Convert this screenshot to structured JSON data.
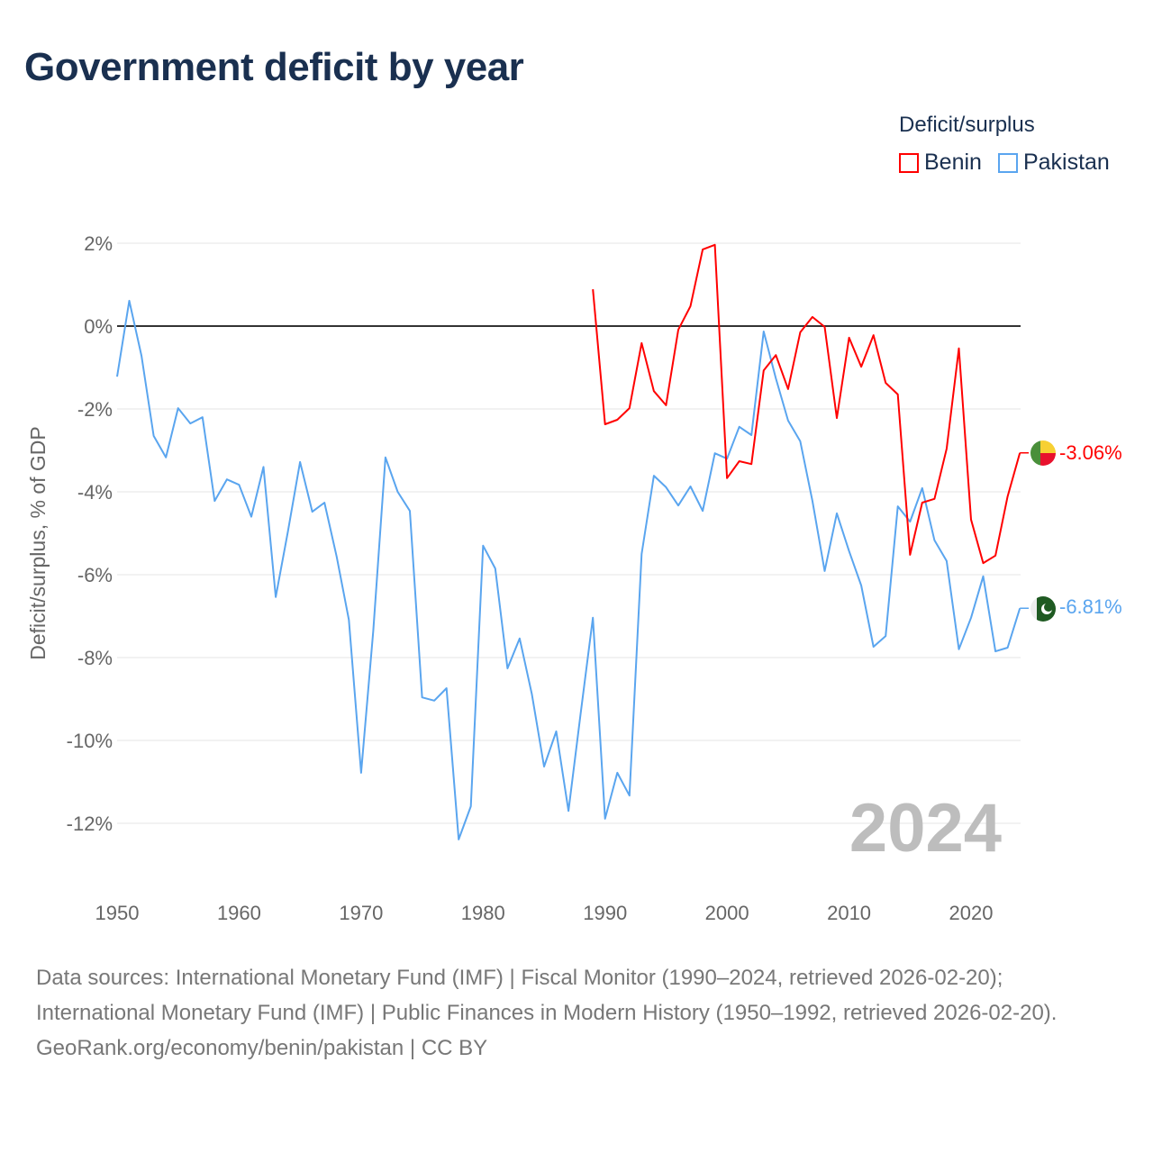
{
  "title": "Government deficit by year",
  "legend": {
    "title": "Deficit/surplus",
    "items": [
      {
        "name": "Benin",
        "color": "#ff0000"
      },
      {
        "name": "Pakistan",
        "color": "#5aa5ef"
      }
    ]
  },
  "year_label": "2024",
  "end_labels": {
    "benin": "-3.06%",
    "pakistan": "-6.81%"
  },
  "footer": {
    "sources": "Data sources: International Monetary Fund (IMF) | Fiscal Monitor (1990–2024, retrieved 2026-02-20); International Monetary Fund (IMF) | Public Finances in Modern History (1950–1992, retrieved 2026-02-20).",
    "credit": "GeoRank.org/economy/benin/pakistan | CC BY"
  },
  "chart_data": {
    "type": "line",
    "title": "Government deficit by year",
    "xlabel": "",
    "ylabel": "Deficit/surplus, % of GDP",
    "xlim": [
      1950,
      2024
    ],
    "ylim": [
      -12,
      2
    ],
    "xticks": [
      1950,
      1960,
      1970,
      1980,
      1990,
      2000,
      2010,
      2020
    ],
    "yticks": [
      2,
      0,
      -2,
      -4,
      -6,
      -8,
      -10,
      -12
    ],
    "ytick_labels": [
      "2%",
      "0%",
      "-2%",
      "-4%",
      "-6%",
      "-8%",
      "-10%",
      "-12%"
    ],
    "xtick_labels": [
      "1950",
      "1960",
      "1970",
      "1980",
      "1990",
      "2000",
      "2010",
      "2020"
    ],
    "grid": true,
    "legend_position": "top-right",
    "series": [
      {
        "name": "Benin",
        "color": "#ff0000",
        "start": 1989,
        "values": [
          0.89,
          -2.37,
          -2.26,
          -1.98,
          -0.41,
          -1.57,
          -1.91,
          -0.09,
          0.48,
          1.85,
          1.96,
          -3.67,
          -3.26,
          -3.33,
          -1.07,
          -0.7,
          -1.52,
          -0.15,
          0.22,
          -0.02,
          -2.22,
          -0.28,
          -0.98,
          -0.22,
          -1.37,
          -1.65,
          -5.52,
          -4.26,
          -4.17,
          -2.96,
          -0.54,
          -4.67,
          -5.72,
          -5.54,
          -4.11,
          -3.06
        ]
      },
      {
        "name": "Pakistan",
        "color": "#5aa5ef",
        "start": 1950,
        "values": [
          -1.22,
          0.61,
          -0.72,
          -2.65,
          -3.17,
          -1.98,
          -2.35,
          -2.2,
          -4.22,
          -3.7,
          -3.83,
          -4.6,
          -3.4,
          -6.54,
          -4.96,
          -3.28,
          -4.48,
          -4.26,
          -5.57,
          -7.09,
          -10.78,
          -7.35,
          -3.17,
          -4.0,
          -4.46,
          -8.96,
          -9.04,
          -8.74,
          -12.39,
          -11.59,
          -5.3,
          -5.85,
          -8.26,
          -7.54,
          -8.89,
          -10.63,
          -9.78,
          -11.7,
          -9.35,
          -7.04,
          -11.89,
          -10.78,
          -11.33,
          -5.5,
          -3.61,
          -3.89,
          -4.33,
          -3.87,
          -4.46,
          -3.07,
          -3.2,
          -2.43,
          -2.63,
          -0.13,
          -1.26,
          -2.28,
          -2.78,
          -4.22,
          -5.91,
          -4.52,
          -5.43,
          -6.26,
          -7.74,
          -7.48,
          -4.35,
          -4.72,
          -3.91,
          -5.17,
          -5.67,
          -7.8,
          -7.04,
          -6.04,
          -7.85,
          -7.76,
          -6.81
        ]
      }
    ]
  }
}
